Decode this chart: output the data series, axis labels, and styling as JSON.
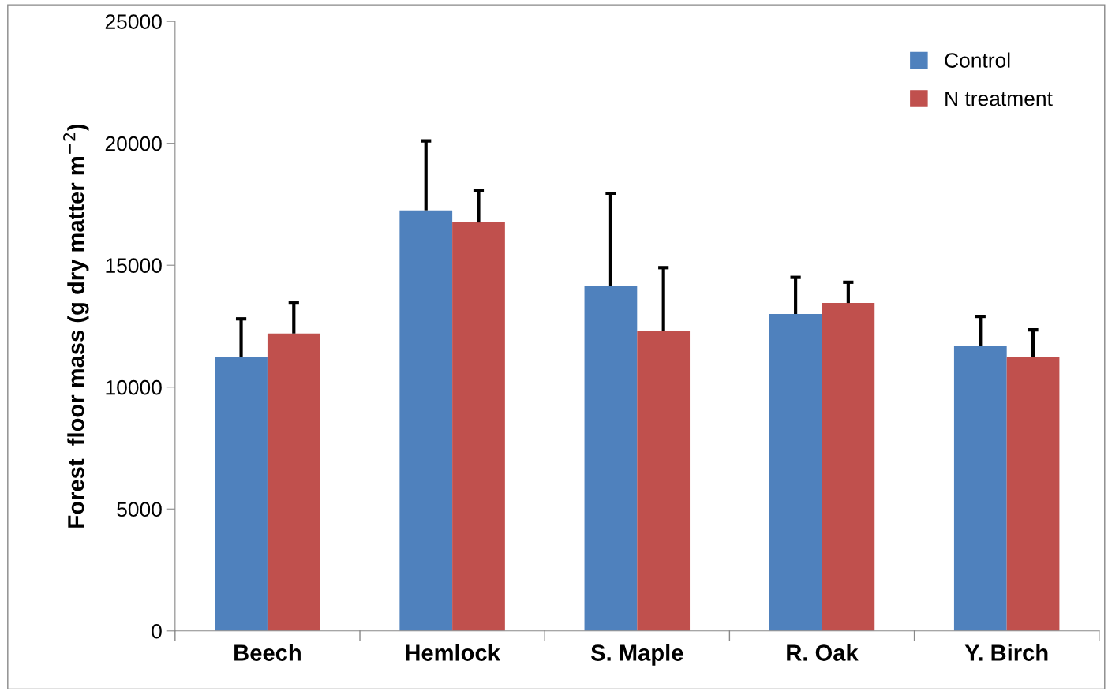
{
  "chart_data": {
    "type": "bar",
    "ylabel": "Forest  floor mass (g dry matter m$^{−2}$)",
    "categories": [
      "Beech",
      "Hemlock",
      "S. Maple",
      "R. Oak",
      "Y. Birch"
    ],
    "series": [
      {
        "name": "Control",
        "color": "#4f81bd",
        "values": [
          11250,
          17250,
          14150,
          13000,
          11700
        ],
        "errors": [
          [
            11250,
            12800
          ],
          [
            17250,
            20100
          ],
          [
            14150,
            17950
          ],
          [
            13000,
            14500
          ],
          [
            11700,
            12900
          ]
        ]
      },
      {
        "name": "N treatment",
        "color": "#c0504d",
        "values": [
          12200,
          16750,
          12300,
          13450,
          11250
        ],
        "errors": [
          [
            12200,
            13450
          ],
          [
            16750,
            18050
          ],
          [
            12300,
            14900
          ],
          [
            13450,
            14300
          ],
          [
            11250,
            12350
          ]
        ]
      }
    ],
    "ylim": [
      0,
      25000
    ],
    "yticks": [
      0,
      5000,
      10000,
      15000,
      20000,
      25000
    ],
    "grid": false,
    "legend": "top right"
  }
}
